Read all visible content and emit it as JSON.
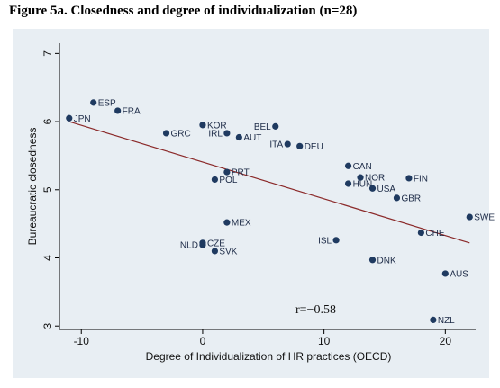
{
  "title": "Figure 5a. Closedness and degree of individualization (n=28)",
  "chart_data": {
    "type": "scatter",
    "xlabel": "Degree of Individualization of HR practices (OECD)",
    "ylabel": "Bureaucratic closedness",
    "xlim": [
      -11.8,
      22.5
    ],
    "ylim": [
      2.95,
      7.15
    ],
    "xticks": [
      -10,
      0,
      10,
      20
    ],
    "yticks": [
      3,
      4,
      5,
      6,
      7
    ],
    "annotation": "r=−0.58",
    "fit_line": {
      "x": [
        -11,
        22
      ],
      "y": [
        6.0,
        4.22
      ]
    },
    "points": [
      {
        "label": "JPN",
        "x": -11,
        "y": 6.05,
        "pos": "right"
      },
      {
        "label": "ESP",
        "x": -9,
        "y": 6.28,
        "pos": "right"
      },
      {
        "label": "FRA",
        "x": -7,
        "y": 6.16,
        "pos": "right"
      },
      {
        "label": "GRC",
        "x": -3,
        "y": 5.83,
        "pos": "right"
      },
      {
        "label": "KOR",
        "x": 0,
        "y": 5.95,
        "pos": "right"
      },
      {
        "label": "IRL",
        "x": 2,
        "y": 5.83,
        "pos": "left"
      },
      {
        "label": "AUT",
        "x": 3,
        "y": 5.77,
        "pos": "right"
      },
      {
        "label": "BEL",
        "x": 6,
        "y": 5.93,
        "pos": "left"
      },
      {
        "label": "ITA",
        "x": 7,
        "y": 5.67,
        "pos": "left"
      },
      {
        "label": "DEU",
        "x": 8,
        "y": 5.64,
        "pos": "right"
      },
      {
        "label": "PRT",
        "x": 2,
        "y": 5.26,
        "pos": "right"
      },
      {
        "label": "POL",
        "x": 1,
        "y": 5.15,
        "pos": "right"
      },
      {
        "label": "CAN",
        "x": 12,
        "y": 5.35,
        "pos": "right"
      },
      {
        "label": "NOR",
        "x": 13,
        "y": 5.18,
        "pos": "right"
      },
      {
        "label": "HUN",
        "x": 12,
        "y": 5.09,
        "pos": "right"
      },
      {
        "label": "USA",
        "x": 14,
        "y": 5.02,
        "pos": "right"
      },
      {
        "label": "FIN",
        "x": 17,
        "y": 5.17,
        "pos": "right"
      },
      {
        "label": "GBR",
        "x": 16,
        "y": 4.88,
        "pos": "right"
      },
      {
        "label": "SWE",
        "x": 22,
        "y": 4.6,
        "pos": "right"
      },
      {
        "label": "MEX",
        "x": 2,
        "y": 4.52,
        "pos": "right"
      },
      {
        "label": "NLD",
        "x": 0,
        "y": 4.19,
        "pos": "left"
      },
      {
        "label": "CZE",
        "x": 0,
        "y": 4.22,
        "pos": "right"
      },
      {
        "label": "SVK",
        "x": 1,
        "y": 4.1,
        "pos": "right"
      },
      {
        "label": "ISL",
        "x": 11,
        "y": 4.26,
        "pos": "left"
      },
      {
        "label": "CHE",
        "x": 18,
        "y": 4.37,
        "pos": "right"
      },
      {
        "label": "DNK",
        "x": 14,
        "y": 3.97,
        "pos": "right"
      },
      {
        "label": "AUS",
        "x": 20,
        "y": 3.77,
        "pos": "right"
      },
      {
        "label": "NZL",
        "x": 19,
        "y": 3.09,
        "pos": "right"
      }
    ]
  },
  "colors": {
    "background": "#e8eef3",
    "marker": "#1f3a60",
    "fit_line": "#8b2a2a",
    "axis": "#000000"
  }
}
